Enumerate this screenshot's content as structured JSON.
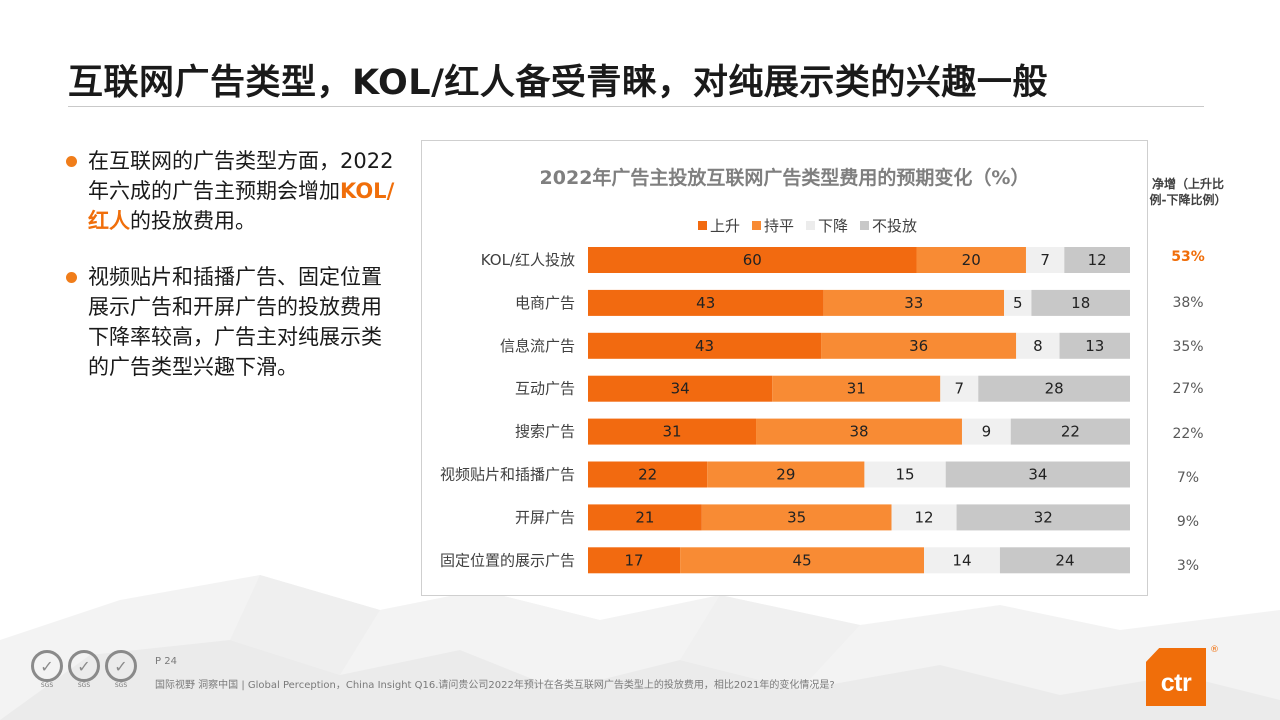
{
  "page": {
    "title": "互联网广告类型，KOL/红人备受青睐，对纯展示类的兴趣一般",
    "bullets": [
      {
        "parts": [
          "在互联网的广告类型方面，2022年六成的广告主预期会增加",
          "KOL/红人",
          "的投放费用。"
        ]
      },
      {
        "parts": [
          "视频贴片和插播广告、固定位置展示广告和开屏广告的投放费用下降率较高，广告主对纯展示类的广告类型兴趣下滑。"
        ]
      }
    ],
    "net_header": "净增（上升比例-下降比例）",
    "footer": {
      "page_no": "P 24",
      "text": "国际视野  洞察中国 |  Global Perception，China Insight  Q16.请问贵公司2022年预计在各类互联网广告类型上的投放费用，相比2021年的变化情况是?",
      "sgs_label": "SGS",
      "logo_text": "ctr",
      "reg_mark": "®"
    }
  },
  "chart_data": {
    "type": "bar",
    "orientation": "horizontal",
    "stacked": true,
    "percent_stacked": true,
    "title": "2022年广告主投放互联网广告类型费用的预期变化（%）",
    "legend_position": "top",
    "categories": [
      "KOL/红人投放",
      "电商广告",
      "信息流广告",
      "互动广告",
      "搜索广告",
      "视频贴片和插播广告",
      "开屏广告",
      "固定位置的展示广告"
    ],
    "series": [
      {
        "name": "上升",
        "color": "#f26a10",
        "values": [
          60,
          43,
          43,
          34,
          31,
          22,
          21,
          17
        ]
      },
      {
        "name": "持平",
        "color": "#f88b34",
        "values": [
          20,
          33,
          36,
          31,
          38,
          29,
          35,
          45
        ]
      },
      {
        "name": "下降",
        "color": "#f0f0f0",
        "values": [
          7,
          5,
          8,
          7,
          9,
          15,
          12,
          14
        ]
      },
      {
        "name": "不投放",
        "color": "#c8c8c8",
        "values": [
          12,
          18,
          13,
          28,
          22,
          34,
          32,
          24
        ]
      }
    ],
    "net_increase": [
      "53%",
      "38%",
      "35%",
      "27%",
      "22%",
      "7%",
      "9%",
      "3%"
    ]
  }
}
